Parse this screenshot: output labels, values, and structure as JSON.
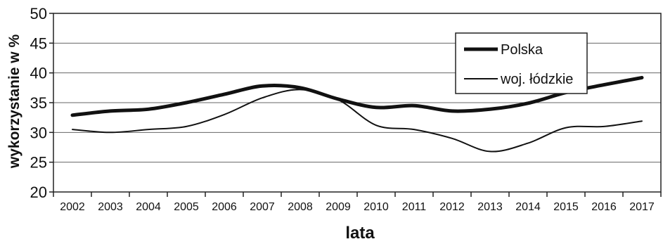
{
  "chart_data": {
    "type": "line",
    "title": "",
    "xlabel": "lata",
    "ylabel": "wykorzystanie w %",
    "x": [
      "2002",
      "2003",
      "2004",
      "2005",
      "2006",
      "2007",
      "2008",
      "2009",
      "2010",
      "2011",
      "2012",
      "2013",
      "2014",
      "2015",
      "2016",
      "2017"
    ],
    "ylim": [
      20,
      50
    ],
    "yticks": [
      20,
      25,
      30,
      35,
      40,
      45,
      50
    ],
    "grid": true,
    "legend": "top-right",
    "series": [
      {
        "name": "Polska",
        "values": [
          32.9,
          33.6,
          33.9,
          35.0,
          36.4,
          37.8,
          37.5,
          35.6,
          34.2,
          34.5,
          33.6,
          33.9,
          34.9,
          36.7,
          38.0,
          39.2
        ],
        "color": "#111111",
        "style": "thick"
      },
      {
        "name": "woj. łódzkie",
        "values": [
          30.5,
          30.0,
          30.5,
          31.0,
          33.0,
          35.8,
          37.2,
          35.5,
          31.2,
          30.5,
          29.0,
          26.8,
          28.2,
          30.8,
          31.0,
          31.9
        ],
        "color": "#111111",
        "style": "thin"
      }
    ]
  }
}
